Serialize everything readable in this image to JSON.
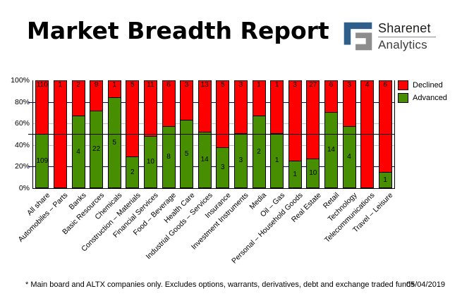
{
  "title": "Market Breadth Report",
  "logo": {
    "line1": "Sharenet",
    "line2": "Analytics",
    "blue": "#2e5f8a",
    "gray": "#8d8d8d"
  },
  "footnote": "* Main board and ALTX companies only. Excludes options, warrants, derivatives, debt and exchange traded funds",
  "date": "05/04/2019",
  "colors": {
    "declined": "#ff0000",
    "advanced": "#478e00",
    "grid_major": "#000080",
    "grid_minor": "#c0c0c0",
    "reference": "#000000"
  },
  "chart_data": {
    "type": "bar",
    "stacked": true,
    "percent_axis": true,
    "title": "",
    "xlabel": "",
    "ylabel": "",
    "ylim": [
      0,
      100
    ],
    "y_ticks": [
      "0%",
      "20%",
      "40%",
      "60%",
      "80%",
      "100%"
    ],
    "gridlines": {
      "navy": [
        20,
        80
      ],
      "gray": [
        40,
        60
      ]
    },
    "reference_line": 50,
    "legend_position": "top-right",
    "categories": [
      "All share",
      "Automobiles – Parts",
      "Banks",
      "Basic Resources",
      "Chemicals",
      "Construction – Materials",
      "Financial Services",
      "Food – Beverage",
      "Health Care",
      "Industrial Goods – Services",
      "Insurance",
      "Investment Instruments",
      "Media",
      "Oil – Gas",
      "Personal – Household Goods",
      "Real Estate",
      "Retail",
      "Technology",
      "Telecommunications",
      "Travel – Leisure"
    ],
    "series": [
      {
        "name": "Declined",
        "color": "#ff0000",
        "values": [
          110,
          1,
          2,
          9,
          1,
          5,
          11,
          6,
          3,
          13,
          5,
          3,
          1,
          1,
          3,
          27,
          6,
          3,
          4,
          6
        ]
      },
      {
        "name": "Advanced",
        "color": "#478e00",
        "values": [
          109,
          0,
          4,
          22,
          5,
          2,
          10,
          8,
          5,
          14,
          3,
          3,
          2,
          1,
          1,
          10,
          14,
          4,
          0,
          1
        ]
      }
    ]
  }
}
